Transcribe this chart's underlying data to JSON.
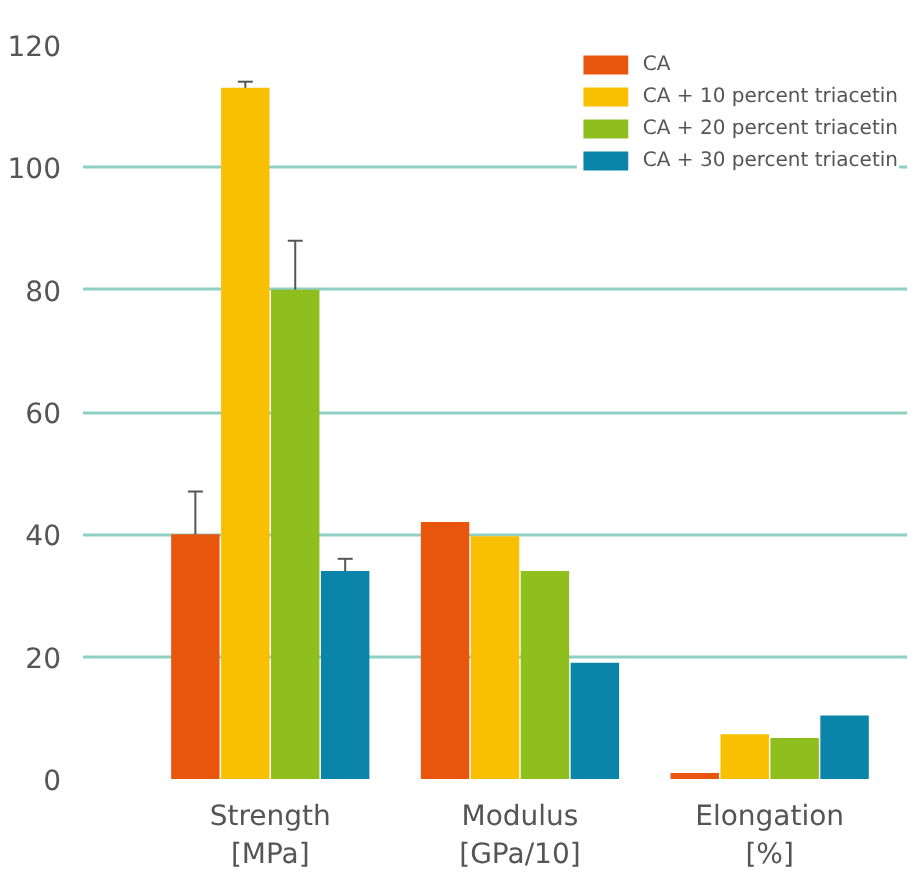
{
  "chart_data": {
    "type": "bar",
    "categories": [
      "Strength\n[MPa]",
      "Modulus\n[GPa/10]",
      "Elongation\n[%]"
    ],
    "series": [
      {
        "name": "CA",
        "color": "#e8560e",
        "values": [
          40,
          42,
          1
        ],
        "errors": [
          [
            40,
            47
          ],
          null,
          null
        ]
      },
      {
        "name": "CA + 10 percent triacetin",
        "color": "#f8c000",
        "values": [
          113,
          39.7,
          7.3
        ],
        "errors": [
          [
            113,
            114
          ],
          null,
          null
        ]
      },
      {
        "name": "CA + 20 percent triacetin",
        "color": "#8fbf1f",
        "values": [
          80,
          34,
          6.7
        ],
        "errors": [
          [
            80,
            88
          ],
          null,
          null
        ]
      },
      {
        "name": "CA + 30 percent triacetin",
        "color": "#0a84a8",
        "values": [
          34,
          19,
          10.4
        ],
        "errors": [
          [
            34,
            36
          ],
          null,
          null
        ]
      }
    ],
    "ylim": [
      0,
      120
    ],
    "yticks": [
      0,
      20,
      40,
      60,
      80,
      100,
      120
    ],
    "grid": "y",
    "legend": "top right"
  }
}
